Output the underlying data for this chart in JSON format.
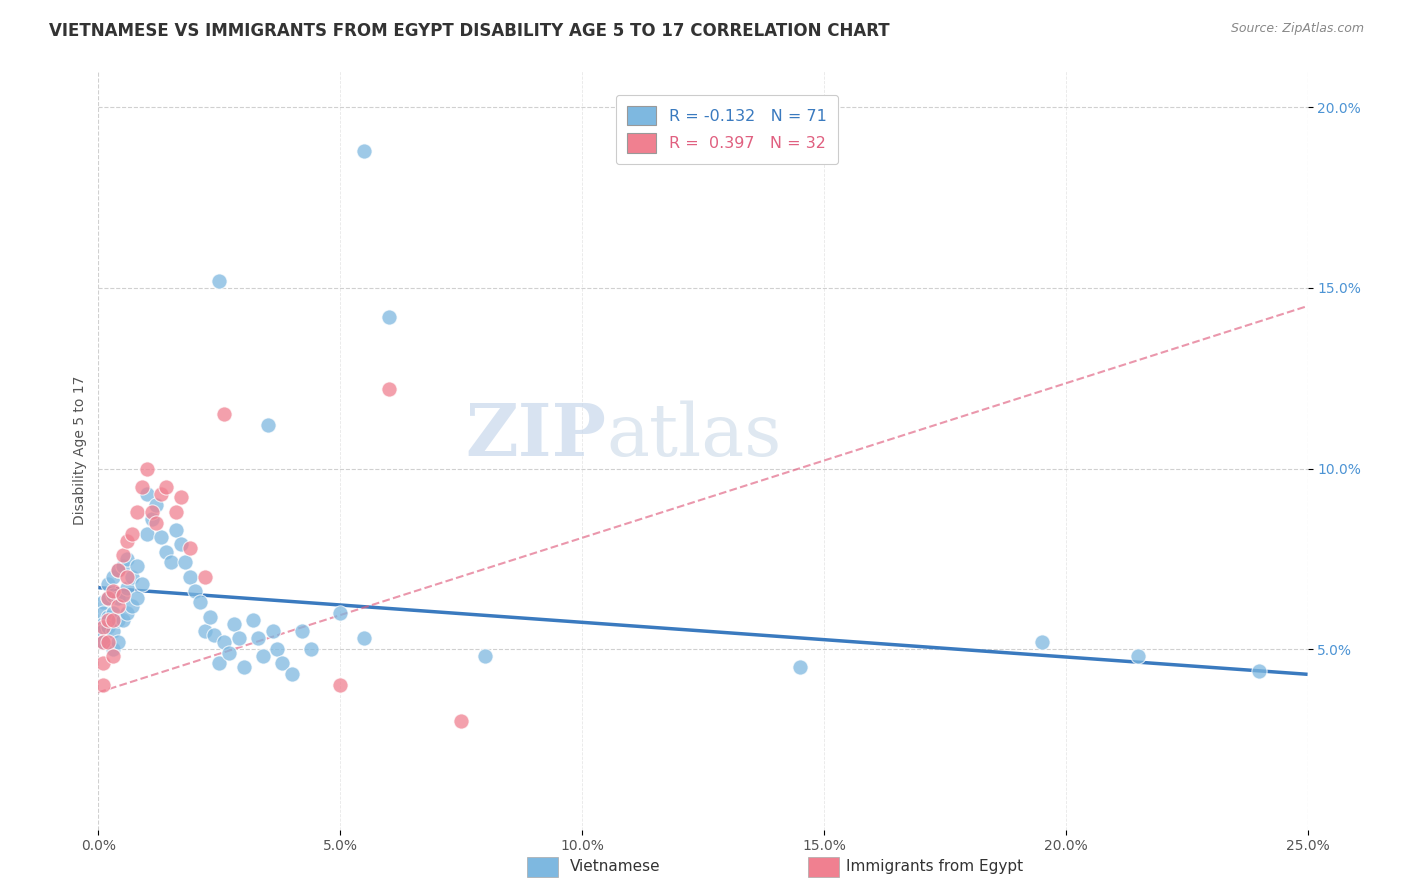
{
  "title": "VIETNAMESE VS IMMIGRANTS FROM EGYPT DISABILITY AGE 5 TO 17 CORRELATION CHART",
  "source_text": "Source: ZipAtlas.com",
  "ylabel": "Disability Age 5 to 17",
  "xlim": [
    0.0,
    0.25
  ],
  "ylim": [
    0.0,
    0.21
  ],
  "xticks": [
    0.0,
    0.05,
    0.1,
    0.15,
    0.2,
    0.25
  ],
  "xticklabels": [
    "0.0%",
    "5.0%",
    "10.0%",
    "15.0%",
    "20.0%",
    "25.0%"
  ],
  "yticks_right": [
    0.05,
    0.1,
    0.15,
    0.2
  ],
  "yticklabels_right": [
    "5.0%",
    "10.0%",
    "15.0%",
    "20.0%"
  ],
  "watermark_part1": "ZIP",
  "watermark_part2": "atlas",
  "viet_color": "#7eb8e0",
  "egypt_color": "#f08090",
  "viet_line_color": "#3a7abf",
  "egypt_line_color": "#e06080",
  "background_color": "#ffffff",
  "grid_color": "#d0d0d0",
  "title_color": "#333333",
  "title_fontsize": 12,
  "axis_label_fontsize": 10,
  "tick_fontsize": 10,
  "right_tick_color": "#4d94d4",
  "viet_line_x": [
    0.0,
    0.25
  ],
  "viet_line_y": [
    0.067,
    0.043
  ],
  "egypt_line_x": [
    0.0,
    0.25
  ],
  "egypt_line_y": [
    0.038,
    0.145
  ],
  "viet_x": [
    0.001,
    0.001,
    0.001,
    0.001,
    0.001,
    0.002,
    0.002,
    0.002,
    0.002,
    0.003,
    0.003,
    0.003,
    0.003,
    0.003,
    0.004,
    0.004,
    0.004,
    0.004,
    0.005,
    0.005,
    0.005,
    0.006,
    0.006,
    0.006,
    0.007,
    0.007,
    0.008,
    0.008,
    0.009,
    0.01,
    0.01,
    0.011,
    0.012,
    0.013,
    0.014,
    0.015,
    0.016,
    0.017,
    0.018,
    0.019,
    0.02,
    0.021,
    0.022,
    0.023,
    0.024,
    0.025,
    0.026,
    0.027,
    0.028,
    0.029,
    0.03,
    0.032,
    0.033,
    0.034,
    0.036,
    0.037,
    0.038,
    0.04,
    0.042,
    0.044,
    0.05,
    0.055,
    0.06,
    0.025,
    0.035,
    0.055,
    0.08,
    0.145,
    0.195,
    0.215,
    0.24
  ],
  "viet_y": [
    0.063,
    0.06,
    0.057,
    0.055,
    0.052,
    0.068,
    0.064,
    0.059,
    0.056,
    0.07,
    0.065,
    0.06,
    0.055,
    0.05,
    0.072,
    0.064,
    0.058,
    0.052,
    0.073,
    0.065,
    0.058,
    0.075,
    0.067,
    0.06,
    0.07,
    0.062,
    0.073,
    0.064,
    0.068,
    0.093,
    0.082,
    0.086,
    0.09,
    0.081,
    0.077,
    0.074,
    0.083,
    0.079,
    0.074,
    0.07,
    0.066,
    0.063,
    0.055,
    0.059,
    0.054,
    0.046,
    0.052,
    0.049,
    0.057,
    0.053,
    0.045,
    0.058,
    0.053,
    0.048,
    0.055,
    0.05,
    0.046,
    0.043,
    0.055,
    0.05,
    0.06,
    0.188,
    0.142,
    0.152,
    0.112,
    0.053,
    0.048,
    0.045,
    0.052,
    0.048,
    0.044
  ],
  "egypt_x": [
    0.001,
    0.001,
    0.001,
    0.001,
    0.002,
    0.002,
    0.002,
    0.003,
    0.003,
    0.003,
    0.004,
    0.004,
    0.005,
    0.005,
    0.006,
    0.006,
    0.007,
    0.008,
    0.009,
    0.01,
    0.011,
    0.012,
    0.013,
    0.014,
    0.016,
    0.017,
    0.019,
    0.022,
    0.026,
    0.05,
    0.06,
    0.075
  ],
  "egypt_y": [
    0.056,
    0.052,
    0.046,
    0.04,
    0.064,
    0.058,
    0.052,
    0.066,
    0.058,
    0.048,
    0.072,
    0.062,
    0.076,
    0.065,
    0.08,
    0.07,
    0.082,
    0.088,
    0.095,
    0.1,
    0.088,
    0.085,
    0.093,
    0.095,
    0.088,
    0.092,
    0.078,
    0.07,
    0.115,
    0.04,
    0.122,
    0.03
  ]
}
